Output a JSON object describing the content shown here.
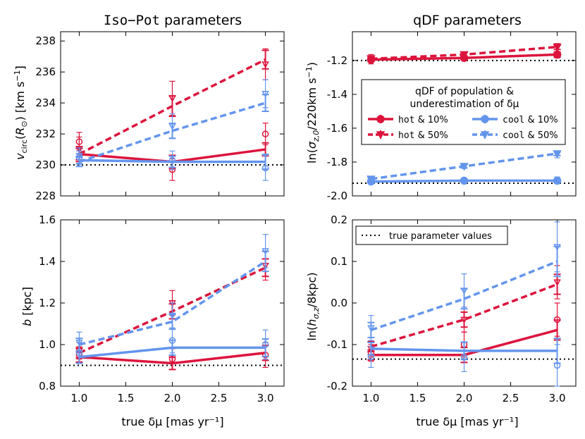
{
  "colors": {
    "hot": "#dc143c",
    "cool": "#6495ed",
    "truth": "#000000"
  },
  "column_titles": {
    "left_code": "Iso−Pot",
    "left_rest": " parameters",
    "right": "qDF parameters"
  },
  "legend_qdf": {
    "title_line1": "qDF of population &",
    "title_line2": "underestimation of δμ",
    "entries": [
      {
        "code": "hot",
        "pct": " & 10%"
      },
      {
        "code": "hot",
        "pct": " & 50%"
      },
      {
        "code": "cool",
        "pct": " & 10%"
      },
      {
        "code": "cool",
        "pct": " & 50%"
      }
    ]
  },
  "legend_truth": {
    "label": "true parameter values"
  },
  "chart_data": [
    {
      "type": "line",
      "id": "vcirc",
      "ylabel": "v_circ(R_⊙) [km s⁻¹]",
      "ylim": [
        228,
        238.6
      ],
      "yticks": [
        228,
        230,
        232,
        234,
        236,
        238
      ],
      "ytick_labels": [
        "228",
        "230",
        "232",
        "234",
        "236",
        "238"
      ],
      "truth": 230,
      "x": [
        1.0,
        2.0,
        3.0
      ],
      "series": [
        {
          "name": "hot & 10%",
          "values": [
            230.7,
            230.2,
            231.0
          ],
          "err": [
            0.6,
            0.7,
            0.7
          ],
          "scatter": [
            231.5,
            229.7,
            232.0
          ]
        },
        {
          "name": "hot & 50%",
          "values": [
            230.7,
            233.8,
            236.8
          ],
          "err": [
            0.8,
            1.1,
            1.0
          ],
          "scatter": [
            231.0,
            234.3,
            236.5
          ]
        },
        {
          "name": "cool & 10%",
          "values": [
            230.3,
            230.2,
            230.2
          ],
          "err": [
            0.4,
            0.6,
            0.8
          ],
          "scatter": [
            230.5,
            230.3,
            229.8
          ]
        },
        {
          "name": "cool & 50%",
          "values": [
            230.2,
            232.2,
            234.0
          ],
          "err": [
            0.5,
            0.8,
            0.9
          ],
          "scatter": [
            230.6,
            232.5,
            234.6
          ]
        }
      ]
    },
    {
      "type": "line",
      "id": "sigma",
      "ylabel": "ln(σ_z,0/220km s⁻¹)",
      "ylim": [
        -2.0,
        -1.03
      ],
      "yticks": [
        -2.0,
        -1.8,
        -1.6,
        -1.4,
        -1.2
      ],
      "ytick_labels": [
        "-2.0",
        "-1.8",
        "-1.6",
        "-1.4",
        "-1.2"
      ],
      "truth": -1.2,
      "truth2": -1.925,
      "x": [
        1.0,
        2.0,
        3.0
      ],
      "series": [
        {
          "name": "hot & 10%",
          "values": [
            -1.195,
            -1.185,
            -1.165
          ],
          "err": [
            0.02,
            0.02,
            0.025
          ],
          "scatter": [
            -1.2,
            -1.18,
            -1.16
          ]
        },
        {
          "name": "hot & 50%",
          "values": [
            -1.19,
            -1.165,
            -1.12
          ],
          "err": [
            0.02,
            0.02,
            0.025
          ],
          "scatter": [
            -1.185,
            -1.17,
            -1.125
          ]
        },
        {
          "name": "cool & 10%",
          "values": [
            -1.915,
            -1.91,
            -1.91
          ],
          "err": [
            0.015,
            0.015,
            0.02
          ],
          "scatter": [
            -1.912,
            -1.912,
            -1.908
          ]
        },
        {
          "name": "cool & 50%",
          "values": [
            -1.9,
            -1.825,
            -1.75
          ],
          "err": [
            0.015,
            0.015,
            0.02
          ],
          "scatter": [
            -1.902,
            -1.823,
            -1.755
          ]
        }
      ]
    },
    {
      "type": "line",
      "id": "b",
      "ylabel": "b [kpc]",
      "ylim": [
        0.8,
        1.6
      ],
      "yticks": [
        0.8,
        1.0,
        1.2,
        1.4,
        1.6
      ],
      "ytick_labels": [
        "0.8",
        "1.0",
        "1.2",
        "1.4",
        "1.6"
      ],
      "truth": 0.9,
      "x": [
        1.0,
        2.0,
        3.0
      ],
      "series": [
        {
          "name": "hot & 10%",
          "values": [
            0.94,
            0.91,
            0.96
          ],
          "err": [
            0.04,
            0.05,
            0.06
          ],
          "scatter": [
            0.95,
            0.93,
            0.95
          ]
        },
        {
          "name": "hot & 50%",
          "values": [
            0.96,
            1.16,
            1.37
          ],
          "err": [
            0.04,
            0.06,
            0.07
          ],
          "scatter": [
            0.97,
            1.2,
            1.38
          ]
        },
        {
          "name": "cool & 10%",
          "values": [
            0.94,
            0.985,
            0.985
          ],
          "err": [
            0.05,
            0.06,
            0.07
          ],
          "scatter": [
            0.96,
            1.02,
            1.0
          ]
        },
        {
          "name": "cool & 50%",
          "values": [
            1.0,
            1.11,
            1.4
          ],
          "err": [
            0.05,
            0.06,
            0.08
          ],
          "scatter": [
            1.01,
            1.14,
            1.45
          ]
        }
      ]
    },
    {
      "type": "line",
      "id": "hsigma",
      "ylabel": "ln(h_σ,z/8kpc)",
      "ylim": [
        -0.2,
        0.2
      ],
      "yticks": [
        -0.2,
        -0.1,
        0.0,
        0.1,
        0.2
      ],
      "ytick_labels": [
        "-0.2",
        "-0.1",
        "0.0",
        "0.1",
        "0.2"
      ],
      "truth": -0.135,
      "x": [
        1.0,
        2.0,
        3.0
      ],
      "series": [
        {
          "name": "hot & 10%",
          "values": [
            -0.125,
            -0.125,
            -0.065
          ],
          "err": [
            0.02,
            0.03,
            0.04
          ],
          "scatter": [
            -0.12,
            -0.1,
            -0.04
          ]
        },
        {
          "name": "hot & 50%",
          "values": [
            -0.105,
            -0.04,
            0.045
          ],
          "err": [
            0.02,
            0.03,
            0.04
          ],
          "scatter": [
            -0.11,
            -0.04,
            0.05
          ]
        },
        {
          "name": "cool & 10%",
          "values": [
            -0.11,
            -0.115,
            -0.115
          ],
          "err": [
            0.025,
            0.035,
            0.05
          ],
          "scatter": [
            -0.13,
            -0.13,
            -0.15
          ]
        },
        {
          "name": "cool & 50%",
          "values": [
            -0.065,
            0.01,
            0.1
          ],
          "err": [
            0.03,
            0.04,
            0.06
          ],
          "scatter": [
            -0.06,
            0.03,
            0.135
          ]
        }
      ]
    }
  ],
  "xaxis": {
    "label": "true δμ [mas yr⁻¹]",
    "xlim": [
      0.8,
      3.2
    ],
    "ticks": [
      1.0,
      1.5,
      2.0,
      2.5,
      3.0
    ],
    "tick_labels": [
      "1.0",
      "1.5",
      "2.0",
      "2.5",
      "3.0"
    ]
  }
}
